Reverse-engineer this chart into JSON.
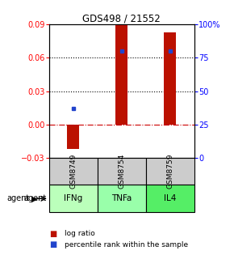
{
  "title": "GDS498 / 21552",
  "samples": [
    "GSM8749",
    "GSM8754",
    "GSM8759"
  ],
  "agents": [
    "IFNg",
    "TNFa",
    "IL4"
  ],
  "log_ratios": [
    -0.022,
    0.09,
    0.083
  ],
  "percentile_ranks": [
    37,
    80,
    80
  ],
  "ylim_left": [
    -0.03,
    0.09
  ],
  "ylim_right": [
    0,
    100
  ],
  "yticks_left": [
    -0.03,
    0,
    0.03,
    0.06,
    0.09
  ],
  "yticks_right": [
    0,
    25,
    50,
    75,
    100
  ],
  "ytick_labels_right": [
    "0",
    "25",
    "50",
    "75",
    "100%"
  ],
  "bar_color": "#bb1100",
  "dot_color": "#2244cc",
  "zero_line_color": "#cc0000",
  "agent_colors": [
    "#bbffbb",
    "#99ffaa",
    "#55ee66"
  ],
  "sample_bg": "#cccccc",
  "bar_width": 0.25
}
